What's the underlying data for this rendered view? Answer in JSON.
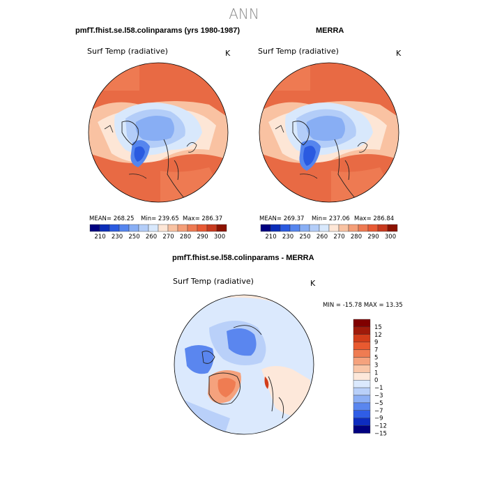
{
  "title": "ANN",
  "colors": {
    "seq": [
      "#000080",
      "#0b2db8",
      "#2a5ae0",
      "#5585ee",
      "#88aef4",
      "#b3cdf8",
      "#d8e8fc",
      "#fde6d6",
      "#f8c2a2",
      "#f49e78",
      "#ee7a52",
      "#e85a34",
      "#c83a1e",
      "#8c1200"
    ],
    "div": [
      "#000080",
      "#0d2cc0",
      "#2f5de6",
      "#5a86ef",
      "#8caff5",
      "#b9d0f9",
      "#dbe9fd",
      "#fde8da",
      "#f9c6a8",
      "#f5a27d",
      "#ef7c52",
      "#e85a30",
      "#d23d1a",
      "#a01a0a",
      "#800000"
    ],
    "land": "#222222"
  },
  "chart_data": [
    {
      "type": "heatmap",
      "title": "pmfT.fhist.se.l58.colinparams (yrs 1980-1987)",
      "label": "Surf Temp (radiative)",
      "units": "K",
      "stats": {
        "mean": "MEAN= 268.25",
        "min": "Min= 239.65",
        "max": "Max= 286.37"
      },
      "colorbar_ticks": [
        "210",
        "230",
        "250",
        "260",
        "270",
        "280",
        "290",
        "300"
      ]
    },
    {
      "type": "heatmap",
      "title": "MERRA",
      "label": "Surf Temp (radiative)",
      "units": "K",
      "stats": {
        "mean": "MEAN= 269.37",
        "min": "Min= 237.06",
        "max": "Max= 286.84"
      },
      "colorbar_ticks": [
        "210",
        "230",
        "250",
        "260",
        "270",
        "280",
        "290",
        "300"
      ]
    },
    {
      "type": "heatmap",
      "title": "pmfT.fhist.se.l58.colinparams - MERRA",
      "label": "Surf Temp (radiative)",
      "units": "K",
      "stats": {
        "minmax": "MIN = -15.78  MAX =  13.35"
      },
      "colorbar_ticks": [
        "15",
        "12",
        "9",
        "7",
        "5",
        "3",
        "1",
        "0",
        "−1",
        "−3",
        "−5",
        "−7",
        "−9",
        "−12",
        "−15"
      ]
    }
  ]
}
